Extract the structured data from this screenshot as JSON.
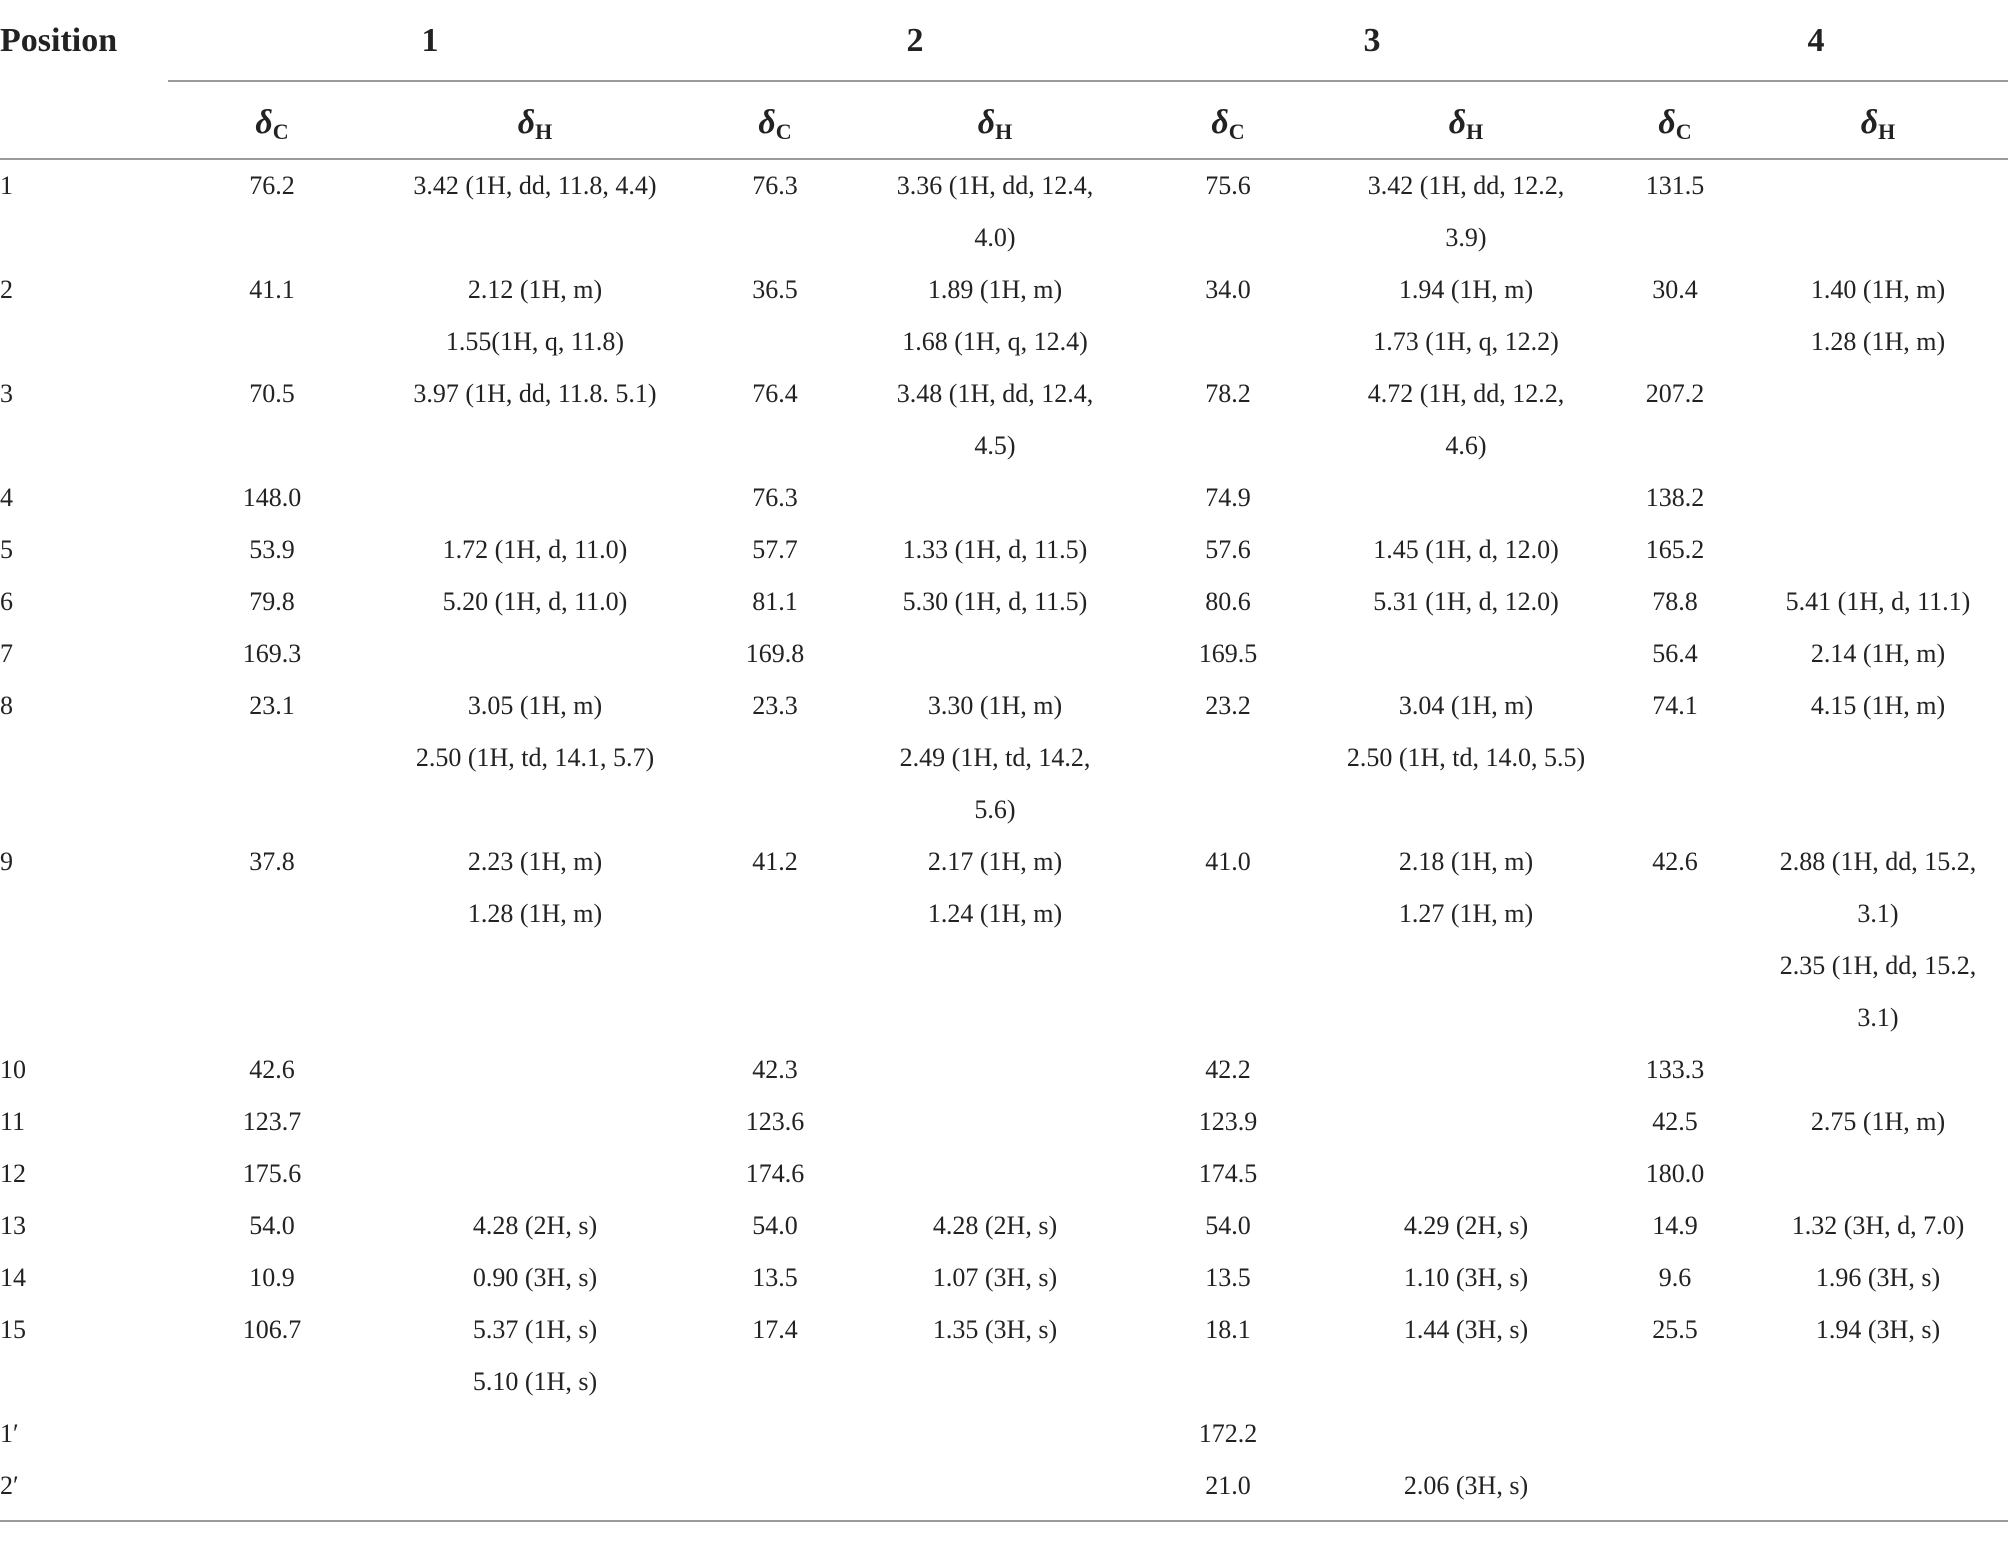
{
  "header": {
    "position_label": "Position",
    "compounds": [
      "1",
      "2",
      "3",
      "4"
    ],
    "delta_symbol": "δ",
    "delta_c_sub": "C",
    "delta_h_sub": "H"
  },
  "rows": [
    {
      "pos": "1",
      "c": [
        "76.2",
        "76.3",
        "75.6",
        "131.5"
      ],
      "h": [
        [
          "3.42 (1H, dd, 11.8, 4.4)"
        ],
        [
          "3.36 (1H, dd, 12.4,",
          "4.0)"
        ],
        [
          "3.42 (1H, dd, 12.2,",
          "3.9)"
        ],
        []
      ]
    },
    {
      "pos": "2",
      "c": [
        "41.1",
        "36.5",
        "34.0",
        "30.4"
      ],
      "h": [
        [
          "2.12 (1H, m)",
          "1.55(1H, q, 11.8)"
        ],
        [
          "1.89 (1H, m)",
          "1.68 (1H, q, 12.4)"
        ],
        [
          "1.94 (1H, m)",
          "1.73 (1H, q, 12.2)"
        ],
        [
          "1.40 (1H, m)",
          "1.28 (1H, m)"
        ]
      ]
    },
    {
      "pos": "3",
      "c": [
        "70.5",
        "76.4",
        "78.2",
        "207.2"
      ],
      "h": [
        [
          "3.97 (1H, dd, 11.8. 5.1)"
        ],
        [
          "3.48 (1H, dd, 12.4,",
          "4.5)"
        ],
        [
          "4.72 (1H, dd, 12.2,",
          "4.6)"
        ],
        []
      ]
    },
    {
      "pos": "4",
      "c": [
        "148.0",
        "76.3",
        "74.9",
        "138.2"
      ],
      "h": [
        [],
        [],
        [],
        []
      ]
    },
    {
      "pos": "5",
      "c": [
        "53.9",
        "57.7",
        "57.6",
        "165.2"
      ],
      "h": [
        [
          "1.72 (1H, d, 11.0)"
        ],
        [
          "1.33 (1H, d, 11.5)"
        ],
        [
          "1.45 (1H, d, 12.0)"
        ],
        []
      ]
    },
    {
      "pos": "6",
      "c": [
        "79.8",
        "81.1",
        "80.6",
        "78.8"
      ],
      "h": [
        [
          "5.20 (1H, d, 11.0)"
        ],
        [
          "5.30 (1H, d, 11.5)"
        ],
        [
          "5.31 (1H, d, 12.0)"
        ],
        [
          "5.41 (1H, d, 11.1)"
        ]
      ]
    },
    {
      "pos": "7",
      "c": [
        "169.3",
        "169.8",
        "169.5",
        "56.4"
      ],
      "h": [
        [],
        [],
        [],
        [
          "2.14 (1H, m)"
        ]
      ]
    },
    {
      "pos": "8",
      "c": [
        "23.1",
        "23.3",
        "23.2",
        "74.1"
      ],
      "h": [
        [
          "3.05 (1H, m)",
          "2.50 (1H, td, 14.1, 5.7)"
        ],
        [
          "3.30 (1H, m)",
          "2.49 (1H, td, 14.2,",
          "5.6)"
        ],
        [
          "3.04 (1H, m)",
          "2.50 (1H, td, 14.0, 5.5)"
        ],
        [
          "4.15 (1H, m)"
        ]
      ]
    },
    {
      "pos": "9",
      "c": [
        "37.8",
        "41.2",
        "41.0",
        "42.6"
      ],
      "h": [
        [
          "2.23 (1H, m)",
          "1.28 (1H, m)"
        ],
        [
          "2.17 (1H, m)",
          "1.24 (1H, m)"
        ],
        [
          "2.18 (1H, m)",
          "1.27 (1H, m)"
        ],
        [
          "2.88 (1H, dd, 15.2,",
          "3.1)",
          "2.35 (1H, dd, 15.2,",
          "3.1)"
        ]
      ]
    },
    {
      "pos": "10",
      "c": [
        "42.6",
        "42.3",
        "42.2",
        "133.3"
      ],
      "h": [
        [],
        [],
        [],
        []
      ]
    },
    {
      "pos": "11",
      "c": [
        "123.7",
        "123.6",
        "123.9",
        "42.5"
      ],
      "h": [
        [],
        [],
        [],
        [
          "2.75 (1H, m)"
        ]
      ]
    },
    {
      "pos": "12",
      "c": [
        "175.6",
        "174.6",
        "174.5",
        "180.0"
      ],
      "h": [
        [],
        [],
        [],
        []
      ]
    },
    {
      "pos": "13",
      "c": [
        "54.0",
        "54.0",
        "54.0",
        "14.9"
      ],
      "h": [
        [
          "4.28 (2H, s)"
        ],
        [
          "4.28 (2H, s)"
        ],
        [
          "4.29 (2H, s)"
        ],
        [
          "1.32 (3H, d, 7.0)"
        ]
      ]
    },
    {
      "pos": "14",
      "c": [
        "10.9",
        "13.5",
        "13.5",
        "9.6"
      ],
      "h": [
        [
          "0.90 (3H, s)"
        ],
        [
          "1.07 (3H, s)"
        ],
        [
          "1.10 (3H, s)"
        ],
        [
          "1.96 (3H, s)"
        ]
      ]
    },
    {
      "pos": "15",
      "c": [
        "106.7",
        "17.4",
        "18.1",
        "25.5"
      ],
      "h": [
        [
          "5.37 (1H, s)",
          "5.10 (1H, s)"
        ],
        [
          "1.35 (3H, s)"
        ],
        [
          "1.44 (3H, s)"
        ],
        [
          "1.94 (3H, s)"
        ]
      ]
    },
    {
      "pos": "1′",
      "c": [
        "",
        "",
        "172.2",
        ""
      ],
      "h": [
        [],
        [],
        [],
        []
      ]
    },
    {
      "pos": "2′",
      "c": [
        "",
        "",
        "21.0",
        ""
      ],
      "h": [
        [],
        [],
        [
          "2.06 (3H, s)"
        ],
        []
      ]
    }
  ]
}
